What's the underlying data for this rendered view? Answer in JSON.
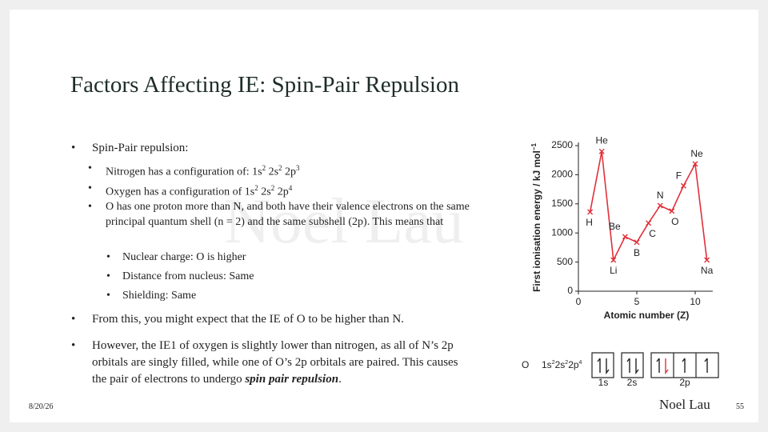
{
  "slide": {
    "title": "Factors Affecting IE: Spin-Pair Repulsion",
    "watermark": "Noel Lau",
    "bullets": [
      {
        "text": "Spin-Pair repulsion:"
      },
      {
        "parts": [
          "Nitrogen has a configuration of: 1s",
          "2",
          " 2s",
          "2",
          " 2p",
          "3"
        ]
      },
      {
        "parts": [
          "Oxygen has a configuration of 1s",
          "2",
          " 2s",
          "2",
          " 2p",
          "4"
        ]
      },
      {
        "text": "O has one proton more than N, and both have their valence electrons on the same principal quantum shell (n = 2) and the same subshell (2p). This means that"
      },
      {
        "text": "Nuclear charge: O is higher"
      },
      {
        "text": "Distance from nucleus: Same"
      },
      {
        "text": "Shielding: Same"
      },
      {
        "text": "From this, you might expect that the IE of O to be higher than N."
      },
      {
        "parts": [
          "However, the IE1 of oxygen is slightly lower than nitrogen, as all of N’s 2p orbitals are singly filled, while one of O’s 2p orbitals are paired. This causes the pair of electrons to undergo ",
          "spin pair repulsion",
          "."
        ]
      }
    ],
    "footer": {
      "date": "8/20/26",
      "author": "Noel Lau",
      "page": "55"
    },
    "chart_data": {
      "type": "line",
      "y_label_parts": [
        "First ionisation energy / kJ mol",
        "−1"
      ],
      "x_label": "Atomic number (Z)",
      "x": [
        1,
        2,
        3,
        4,
        5,
        6,
        7,
        8,
        9,
        10,
        11
      ],
      "point_labels": [
        "H",
        "He",
        "Li",
        "Be",
        "B",
        "C",
        "N",
        "O",
        "F",
        "Ne",
        "Na"
      ],
      "values": [
        1360,
        2400,
        535,
        935,
        840,
        1170,
        1470,
        1375,
        1810,
        2185,
        535
      ],
      "color": "#e0303a",
      "xlim": [
        0,
        11.5
      ],
      "xticks": [
        0,
        5,
        10
      ],
      "ylim": [
        0,
        2500
      ],
      "yticks": [
        0,
        500,
        1000,
        1500,
        2000,
        2500
      ]
    },
    "orbitals": {
      "element": "O",
      "config_parts": [
        "1s",
        "2",
        "2s",
        "2",
        "2p",
        "4"
      ],
      "box_labels": [
        "1s",
        "2s",
        "2p"
      ]
    }
  }
}
